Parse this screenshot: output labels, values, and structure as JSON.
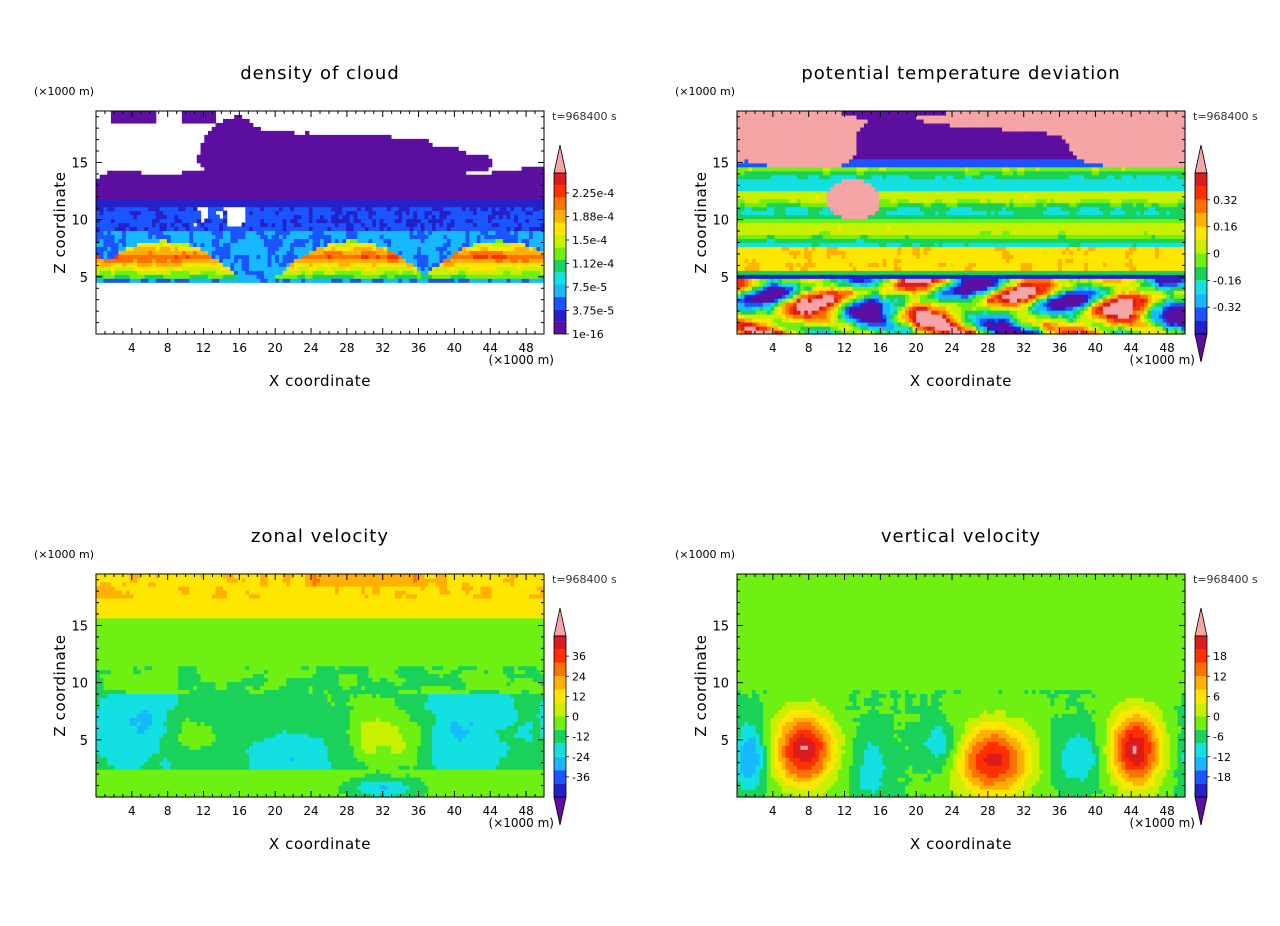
{
  "chart_data": [
    {
      "type": "heatmap",
      "title": "density of cloud",
      "xlabel": "X coordinate",
      "ylabel": "Z coordinate",
      "x_unit": "(×1000 m)",
      "y_unit": "(×1000 m)",
      "time_label": "t=968400 s",
      "xlim": [
        0,
        50
      ],
      "ylim": [
        0,
        19.5
      ],
      "x_ticks": [
        "4",
        "8",
        "12",
        "16",
        "20",
        "24",
        "28",
        "32",
        "36",
        "40",
        "44",
        "48"
      ],
      "y_ticks": [
        "5",
        "10",
        "15"
      ],
      "colorbar_labels": [
        "1e-16",
        "3.75e-5",
        "7.5e-5",
        "1.12e-4",
        "1.5e-4",
        "1.88e-4",
        "2.25e-4"
      ],
      "colorbar_colors": [
        "#5c0fa0",
        "#2222c8",
        "#1a55ff",
        "#17b8ff",
        "#13e0e0",
        "#1ad25a",
        "#6ef012",
        "#c8f000",
        "#ffe600",
        "#ffb000",
        "#ff7200",
        "#ff3000",
        "#dc1c1c",
        "#f5a5a5"
      ],
      "colorbar_extends": "top",
      "field": "cloud"
    },
    {
      "type": "heatmap",
      "title": "potential temperature deviation",
      "xlabel": "X coordinate",
      "ylabel": "Z coordinate",
      "x_unit": "(×1000 m)",
      "y_unit": "(×1000 m)",
      "time_label": "t=968400 s",
      "xlim": [
        0,
        50
      ],
      "ylim": [
        0,
        19.5
      ],
      "x_ticks": [
        "4",
        "8",
        "12",
        "16",
        "20",
        "24",
        "28",
        "32",
        "36",
        "40",
        "44",
        "48"
      ],
      "y_ticks": [
        "5",
        "10",
        "15"
      ],
      "colorbar_labels": [
        "-0.32",
        "-0.16",
        "0",
        "0.16",
        "0.32"
      ],
      "colorbar_colors": [
        "#5c0fa0",
        "#2222c8",
        "#1a55ff",
        "#17b8ff",
        "#13e0e0",
        "#1ad25a",
        "#6ef012",
        "#c8f000",
        "#ffe600",
        "#ffb000",
        "#ff7200",
        "#ff3000",
        "#dc1c1c",
        "#f5a5a5"
      ],
      "colorbar_extends": "both",
      "field": "theta"
    },
    {
      "type": "heatmap",
      "title": "zonal velocity",
      "xlabel": "X coordinate",
      "ylabel": "Z coordinate",
      "x_unit": "(×1000 m)",
      "y_unit": "(×1000 m)",
      "time_label": "t=968400 s",
      "xlim": [
        0,
        50
      ],
      "ylim": [
        0,
        19.5
      ],
      "x_ticks": [
        "4",
        "8",
        "12",
        "16",
        "20",
        "24",
        "28",
        "32",
        "36",
        "40",
        "44",
        "48"
      ],
      "y_ticks": [
        "5",
        "10",
        "15"
      ],
      "colorbar_labels": [
        "-36",
        "-24",
        "-12",
        "0",
        "12",
        "24",
        "36"
      ],
      "colorbar_colors": [
        "#5c0fa0",
        "#2222c8",
        "#1a55ff",
        "#17b8ff",
        "#13e0e0",
        "#1ad25a",
        "#6ef012",
        "#c8f000",
        "#ffe600",
        "#ffb000",
        "#ff7200",
        "#ff3000",
        "#dc1c1c",
        "#f5a5a5"
      ],
      "colorbar_extends": "both",
      "field": "u"
    },
    {
      "type": "heatmap",
      "title": "vertical velocity",
      "xlabel": "X coordinate",
      "ylabel": "Z coordinate",
      "x_unit": "(×1000 m)",
      "y_unit": "(×1000 m)",
      "time_label": "t=968400 s",
      "xlim": [
        0,
        50
      ],
      "ylim": [
        0,
        19.5
      ],
      "x_ticks": [
        "4",
        "8",
        "12",
        "16",
        "20",
        "24",
        "28",
        "32",
        "36",
        "40",
        "44",
        "48"
      ],
      "y_ticks": [
        "5",
        "10",
        "15"
      ],
      "colorbar_labels": [
        "-18",
        "-12",
        "-6",
        "0",
        "6",
        "12",
        "18"
      ],
      "colorbar_colors": [
        "#5c0fa0",
        "#2222c8",
        "#1a55ff",
        "#17b8ff",
        "#13e0e0",
        "#1ad25a",
        "#6ef012",
        "#c8f000",
        "#ffe600",
        "#ffb000",
        "#ff7200",
        "#ff3000",
        "#dc1c1c",
        "#f5a5a5"
      ],
      "colorbar_extends": "both",
      "field": "w"
    }
  ]
}
